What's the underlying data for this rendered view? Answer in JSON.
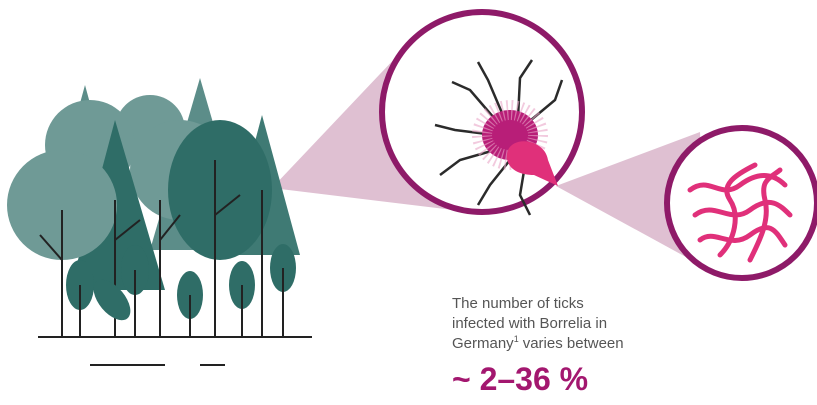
{
  "caption": {
    "line1": "The number of ticks",
    "line2": "infected with Borrelia in",
    "line3": "Germany",
    "footnote": "1",
    "line3_end": "varies between",
    "figure": "~ 2–36 %"
  }
}
